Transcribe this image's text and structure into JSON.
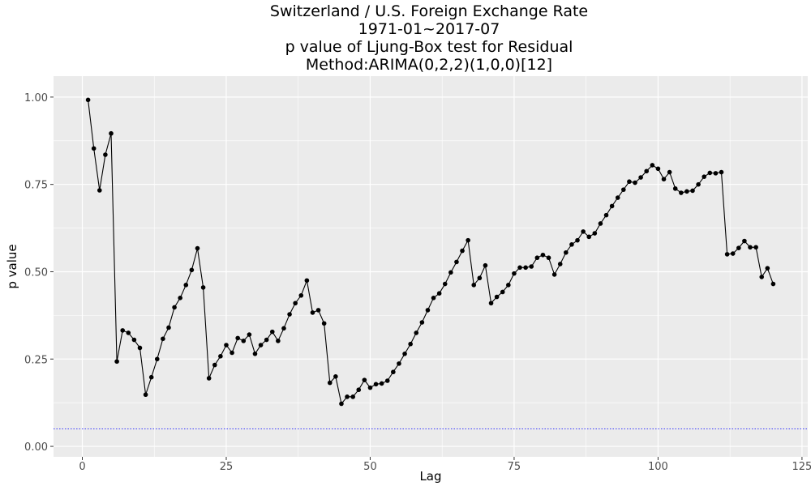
{
  "chart_data": {
    "type": "line",
    "title_lines": [
      "Switzerland / U.S. Foreign Exchange Rate",
      "1971-01~2017-07",
      "p value of Ljung-Box test for Residual",
      "Method:ARIMA(0,2,2)(1,0,0)[12]"
    ],
    "xlabel": "Lag",
    "ylabel": "p value",
    "xlim": [
      -5,
      126
    ],
    "ylim": [
      -0.03,
      1.06
    ],
    "x_ticks": [
      0,
      25,
      50,
      75,
      100,
      125
    ],
    "x_tick_labels": [
      "0",
      "25",
      "50",
      "75",
      "100",
      "125"
    ],
    "y_ticks": [
      0,
      0.25,
      0.5,
      0.75,
      1.0
    ],
    "y_tick_labels": [
      "0.00",
      "0.25",
      "0.50",
      "0.75",
      "1.00"
    ],
    "grid": true,
    "reference_line": {
      "y": 0.05,
      "color": "#0000ff",
      "style": "dotted"
    },
    "colors": {
      "panel": "#ebebeb",
      "grid": "#ffffff",
      "series": "#000000"
    },
    "series": [
      {
        "x": [
          1,
          2,
          3,
          4,
          5,
          6,
          7,
          8,
          9,
          10,
          11,
          12,
          13,
          14,
          15,
          16,
          17,
          18,
          19,
          20,
          21,
          22,
          23,
          24,
          25,
          26,
          27,
          28,
          29,
          30,
          31,
          32,
          33,
          34,
          35,
          36,
          37,
          38,
          39,
          40,
          41,
          42,
          43,
          44,
          45,
          46,
          47,
          48,
          49,
          50,
          51,
          52,
          53,
          54,
          55,
          56,
          57,
          58,
          59,
          60,
          61,
          62,
          63,
          64,
          65,
          66,
          67,
          68,
          69,
          70,
          71,
          72,
          73,
          74,
          75,
          76,
          77,
          78,
          79,
          80,
          81,
          82,
          83,
          84,
          85,
          86,
          87,
          88,
          89,
          90,
          91,
          92,
          93,
          94,
          95,
          96,
          97,
          98,
          99,
          100,
          101,
          102,
          103,
          104,
          105,
          106,
          107,
          108,
          109,
          110,
          111,
          112,
          113,
          114,
          115,
          116,
          117,
          118,
          119,
          120
        ],
        "values": [
          0.992,
          0.853,
          0.733,
          0.835,
          0.896,
          0.243,
          0.332,
          0.325,
          0.305,
          0.282,
          0.148,
          0.198,
          0.25,
          0.308,
          0.34,
          0.398,
          0.425,
          0.462,
          0.505,
          0.567,
          0.455,
          0.195,
          0.233,
          0.258,
          0.29,
          0.268,
          0.31,
          0.302,
          0.32,
          0.265,
          0.29,
          0.305,
          0.328,
          0.302,
          0.338,
          0.378,
          0.41,
          0.432,
          0.475,
          0.383,
          0.39,
          0.352,
          0.182,
          0.2,
          0.122,
          0.142,
          0.142,
          0.162,
          0.19,
          0.168,
          0.178,
          0.18,
          0.188,
          0.213,
          0.237,
          0.265,
          0.293,
          0.325,
          0.355,
          0.39,
          0.425,
          0.438,
          0.465,
          0.498,
          0.528,
          0.56,
          0.59,
          0.462,
          0.482,
          0.518,
          0.41,
          0.428,
          0.442,
          0.462,
          0.495,
          0.512,
          0.512,
          0.515,
          0.54,
          0.548,
          0.54,
          0.492,
          0.522,
          0.555,
          0.578,
          0.59,
          0.615,
          0.6,
          0.61,
          0.638,
          0.662,
          0.688,
          0.712,
          0.735,
          0.758,
          0.755,
          0.77,
          0.788,
          0.805,
          0.795,
          0.765,
          0.785,
          0.738,
          0.726,
          0.73,
          0.732,
          0.75,
          0.772,
          0.783,
          0.782,
          0.785,
          0.55,
          0.552,
          0.568,
          0.588,
          0.57,
          0.57,
          0.485,
          0.51,
          0.465
        ]
      }
    ]
  }
}
